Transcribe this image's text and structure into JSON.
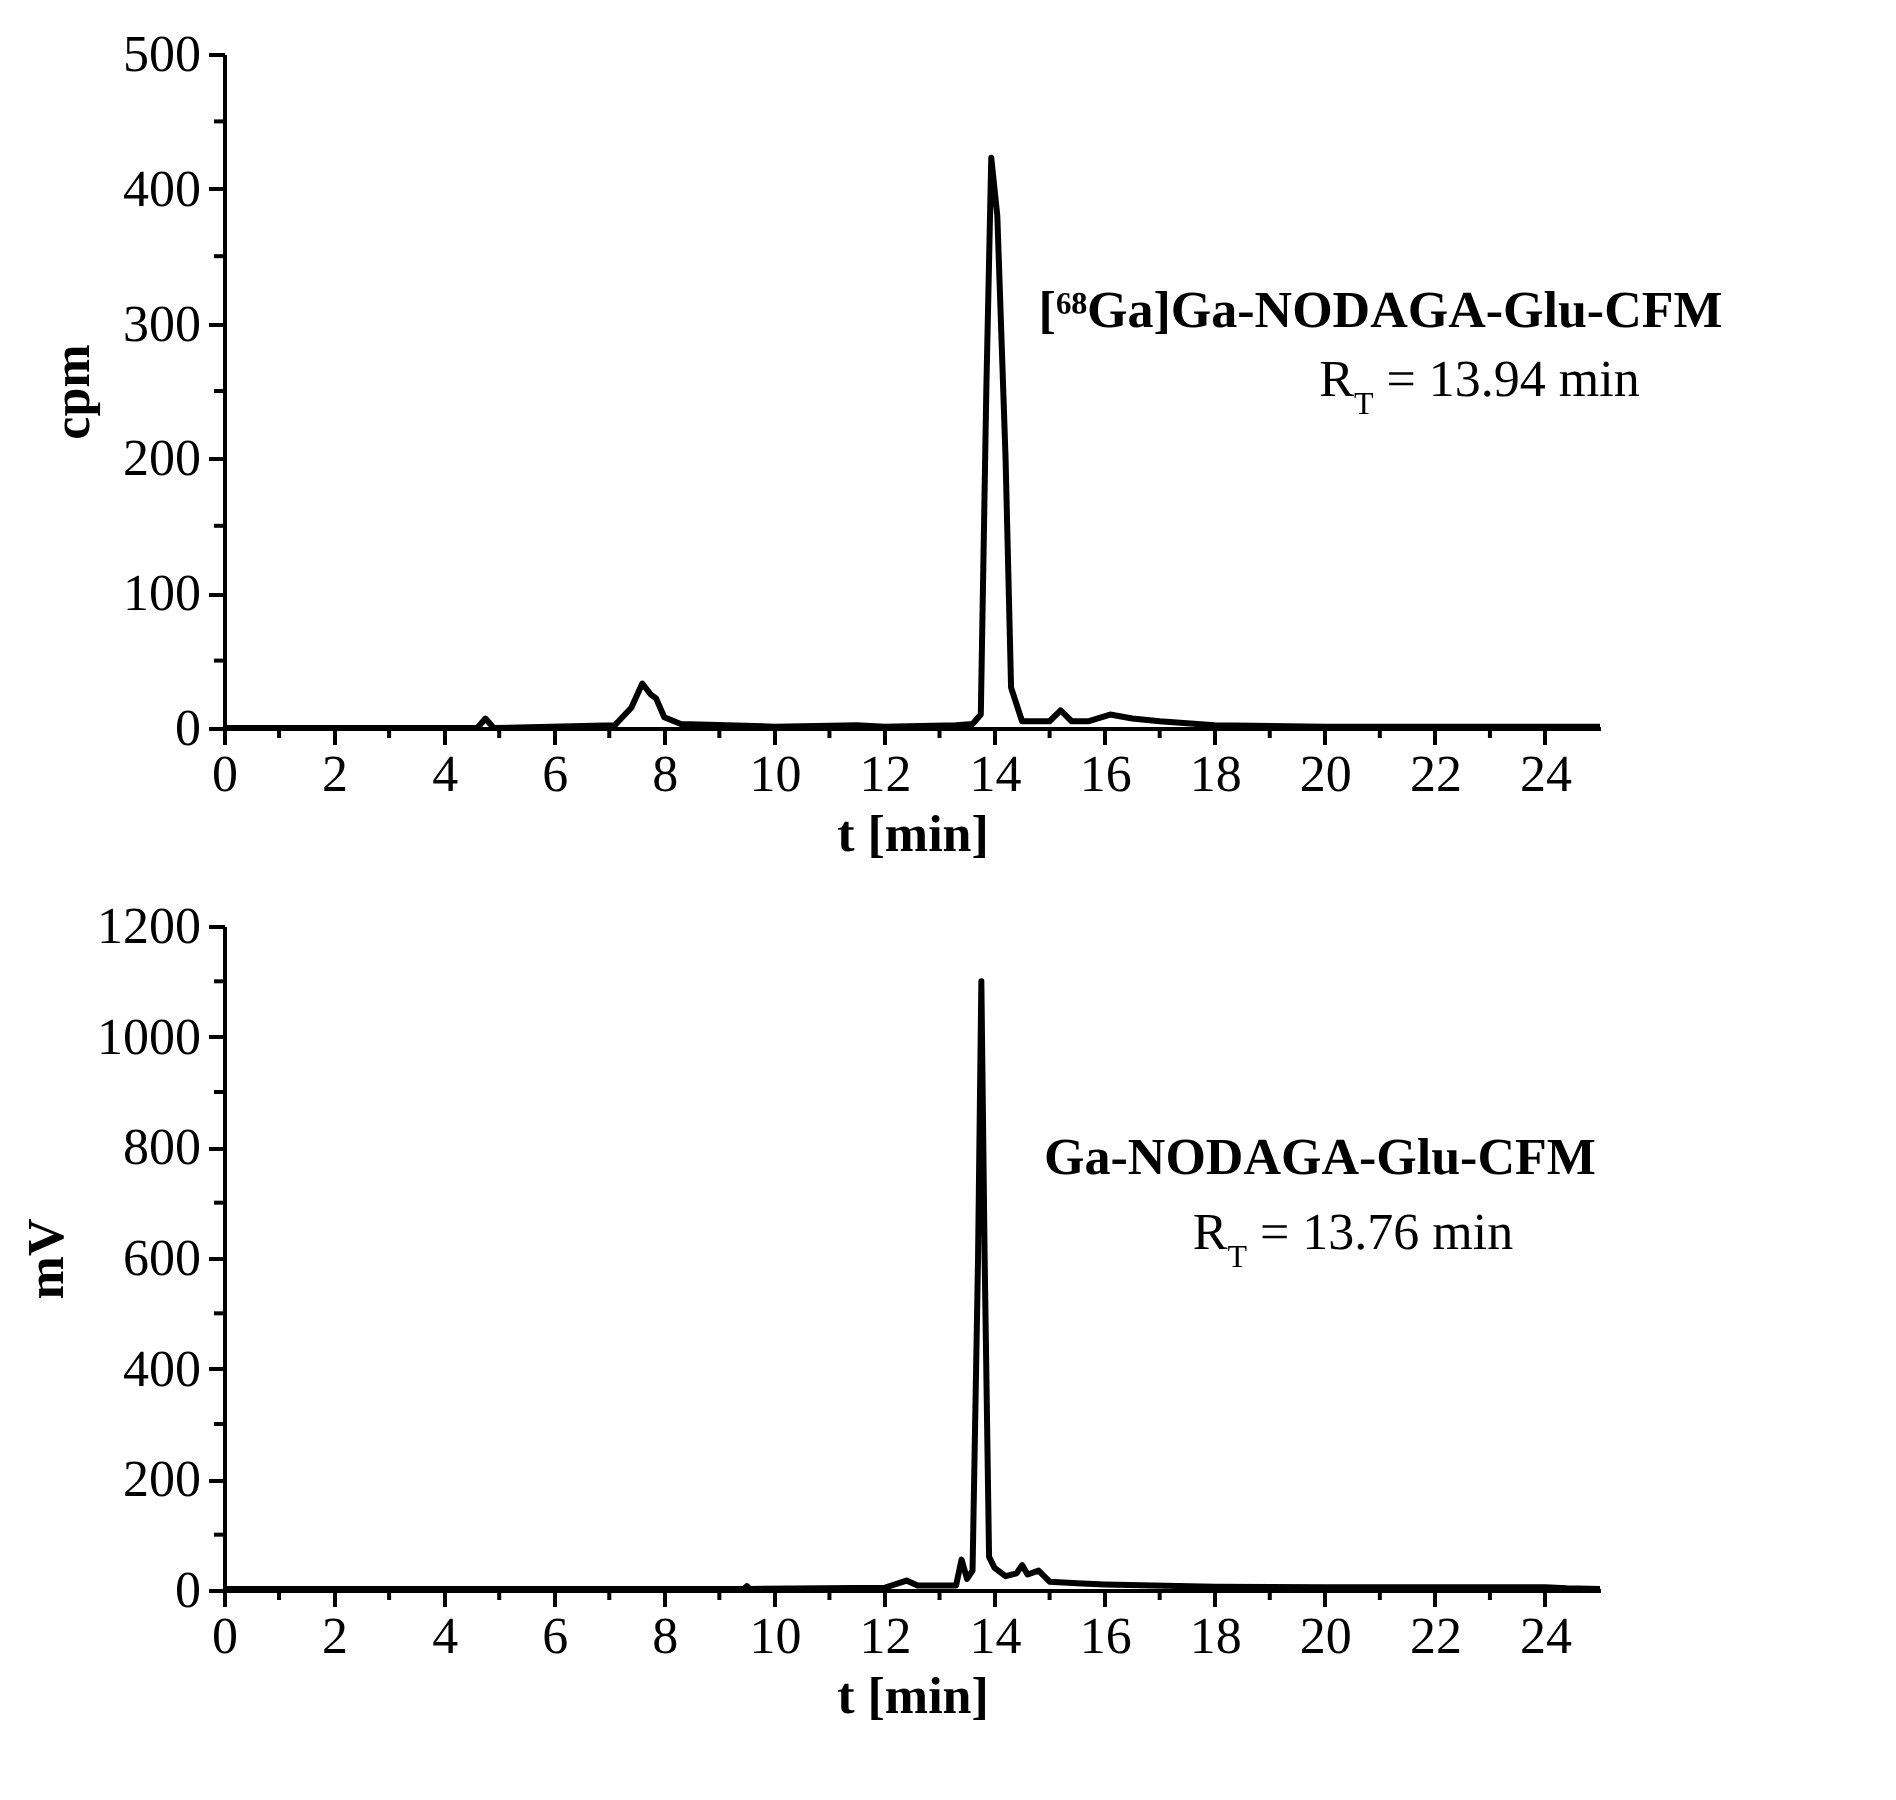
{
  "chart_data": [
    {
      "type": "line",
      "xlabel": "t [min]",
      "ylabel": "cpm",
      "xlim": [
        0,
        25
      ],
      "ylim": [
        0,
        500
      ],
      "xticks": [
        0,
        {
          "value": 1,
          "label": null
        },
        2,
        {
          "value": 3,
          "label": null
        },
        4,
        {
          "value": 5,
          "label": null
        },
        6,
        {
          "value": 7,
          "label": null
        },
        8,
        {
          "value": 9,
          "label": null
        },
        10,
        {
          "value": 11,
          "label": null
        },
        12,
        {
          "value": 13,
          "label": null
        },
        14,
        {
          "value": 15,
          "label": null
        },
        16,
        {
          "value": 17,
          "label": null
        },
        18,
        {
          "value": 19,
          "label": null
        },
        20,
        {
          "value": 21,
          "label": null
        },
        22,
        {
          "value": 23,
          "label": null
        },
        24
      ],
      "yticks": [
        0,
        {
          "value": 50,
          "label": null
        },
        100,
        {
          "value": 150,
          "label": null
        },
        200,
        {
          "value": 250,
          "label": null
        },
        300,
        {
          "value": 350,
          "label": null
        },
        400,
        {
          "value": 450,
          "label": null
        },
        500
      ],
      "x": [
        0,
        4.6,
        4.75,
        4.9,
        7.1,
        7.4,
        7.6,
        7.75,
        7.85,
        8.0,
        8.3,
        10,
        11.5,
        12,
        13.3,
        13.6,
        13.75,
        13.85,
        13.94,
        14.05,
        14.2,
        14.3,
        14.5,
        15,
        15.2,
        15.4,
        15.7,
        16.1,
        16.5,
        17,
        18,
        20,
        25
      ],
      "series": [
        {
          "color": "#000000",
          "values": [
            0,
            0,
            7,
            0,
            2,
            15,
            33,
            25,
            22,
            8,
            3,
            1,
            2,
            1,
            2,
            3,
            10,
            250,
            423,
            380,
            200,
            30,
            5,
            5,
            13,
            5,
            5,
            10,
            7,
            5,
            2,
            1,
            1
          ]
        }
      ],
      "annotations": [
        "[⁶⁸Ga]Ga-NODAGA-Glu-CFM",
        "R$_{T}$ = 13.94 min"
      ]
    },
    {
      "type": "line",
      "xlabel": "t [min]",
      "ylabel": "mV",
      "xlim": [
        0,
        25
      ],
      "ylim": [
        0,
        1200
      ],
      "xticks": [
        0,
        {
          "value": 1,
          "label": null
        },
        2,
        {
          "value": 3,
          "label": null
        },
        4,
        {
          "value": 5,
          "label": null
        },
        6,
        {
          "value": 7,
          "label": null
        },
        8,
        {
          "value": 9,
          "label": null
        },
        10,
        {
          "value": 11,
          "label": null
        },
        12,
        {
          "value": 13,
          "label": null
        },
        14,
        {
          "value": 15,
          "label": null
        },
        16,
        {
          "value": 17,
          "label": null
        },
        18,
        {
          "value": 19,
          "label": null
        },
        20,
        {
          "value": 21,
          "label": null
        },
        22,
        {
          "value": 23,
          "label": null
        },
        24
      ],
      "yticks": [
        0,
        {
          "value": 100,
          "label": null
        },
        200,
        {
          "value": 300,
          "label": null
        },
        400,
        {
          "value": 500,
          "label": null
        },
        600,
        {
          "value": 700,
          "label": null
        },
        800,
        {
          "value": 900,
          "label": null
        },
        1000,
        {
          "value": 1100,
          "label": null
        },
        1200
      ],
      "x": [
        0,
        9.45,
        9.5,
        9.55,
        12,
        12.4,
        12.6,
        13.3,
        13.4,
        13.5,
        13.6,
        13.7,
        13.76,
        13.82,
        13.9,
        14.0,
        14.2,
        14.4,
        14.5,
        14.6,
        14.8,
        15,
        15.5,
        16,
        18,
        20,
        24,
        24.4,
        25
      ],
      "series": [
        {
          "color": "#000000",
          "values": [
            2,
            2,
            7,
            2,
            4,
            17,
            8,
            8,
            55,
            20,
            35,
            600,
            1100,
            600,
            60,
            40,
            25,
            30,
            45,
            28,
            35,
            15,
            12,
            10,
            6,
            5,
            5,
            3,
            2
          ]
        }
      ],
      "annotations": [
        "Ga-NODAGA-Glu-CFM",
        "R$_{T}$ = 13.76 min"
      ]
    }
  ]
}
